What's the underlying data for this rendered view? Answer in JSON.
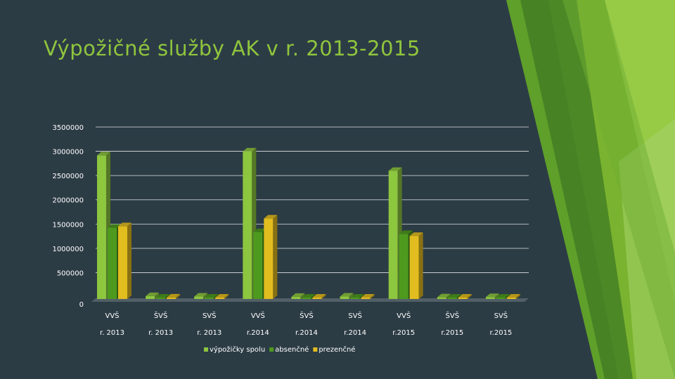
{
  "slide": {
    "title": "Výpožičné služby AK v r. 2013-2015"
  },
  "colors": {
    "background": "#2c3c45",
    "title": "#8fc53d",
    "accent_green": "#7dbb2a"
  },
  "chart_data": {
    "type": "bar",
    "style": "3d-clustered-column",
    "title": "",
    "xlabel": "",
    "ylabel": "",
    "ylim": [
      0,
      3500000
    ],
    "yticks": [
      0,
      500000,
      1000000,
      1500000,
      2000000,
      2500000,
      3000000,
      3500000
    ],
    "grid": true,
    "legend_position": "bottom",
    "categories": [
      {
        "top": "VVŠ",
        "bottom": "r. 2013"
      },
      {
        "top": "ŠVŠ",
        "bottom": "r. 2013"
      },
      {
        "top": "SVŠ",
        "bottom": "r. 2013"
      },
      {
        "top": "VVŠ",
        "bottom": "r.2014"
      },
      {
        "top": "ŠVŠ",
        "bottom": "r.2014"
      },
      {
        "top": "SVŠ",
        "bottom": "r.2014"
      },
      {
        "top": "VVŠ",
        "bottom": "r.2015"
      },
      {
        "top": "ŠVŠ",
        "bottom": "r.2015"
      },
      {
        "top": "SVŠ",
        "bottom": "r.2015"
      }
    ],
    "series": [
      {
        "name": "výpožičky spolu",
        "color": "#8dc63f",
        "values": [
          2960000,
          60000,
          50000,
          3040000,
          45000,
          50000,
          2640000,
          35000,
          40000
        ]
      },
      {
        "name": "absenčné",
        "color": "#4e9a1e",
        "values": [
          1470000,
          20000,
          15000,
          1380000,
          20000,
          20000,
          1340000,
          18000,
          20000
        ]
      },
      {
        "name": "prezenčné",
        "color": "#e2bd1f",
        "values": [
          1500000,
          30000,
          25000,
          1660000,
          25000,
          25000,
          1300000,
          20000,
          15000
        ]
      }
    ]
  }
}
